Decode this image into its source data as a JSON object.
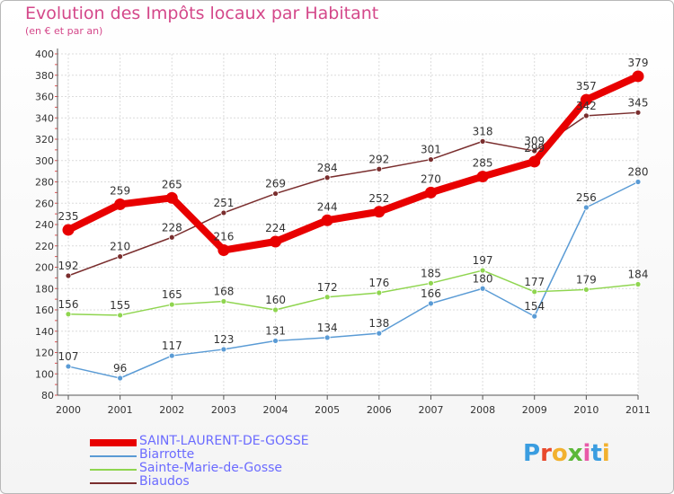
{
  "header": {
    "title": "Evolution des Impôts locaux par Habitant",
    "subtitle": "(en € et par an)"
  },
  "logo": {
    "text": "Proxiti",
    "colors": [
      "#3a9de0",
      "#e8492c",
      "#f2b12f",
      "#5cb83a",
      "#e85aa8",
      "#3a9de0",
      "#f2b12f"
    ]
  },
  "chart_data": {
    "type": "line",
    "categories": [
      "2000",
      "2001",
      "2002",
      "2003",
      "2004",
      "2005",
      "2006",
      "2007",
      "2008",
      "2009",
      "2010",
      "2011"
    ],
    "ylim": [
      80,
      400
    ],
    "yticks": [
      80,
      100,
      120,
      140,
      160,
      180,
      200,
      220,
      240,
      260,
      280,
      300,
      320,
      340,
      360,
      380,
      400
    ],
    "grid": true,
    "legend_position": "bottom-left",
    "series": [
      {
        "name": "SAINT-LAURENT-DE-GOSSE",
        "color": "#e80000",
        "values": [
          235,
          259,
          265,
          216,
          224,
          244,
          252,
          270,
          285,
          299,
          357,
          379
        ],
        "labels": [
          "235",
          "259",
          "265",
          "216",
          "224",
          "244",
          "252",
          "270",
          "285",
          "",
          "357",
          "379"
        ],
        "emphasis": true
      },
      {
        "name": "Biarrotte",
        "color": "#5a9bd5",
        "values": [
          107,
          96,
          117,
          123,
          131,
          134,
          138,
          166,
          180,
          154,
          256,
          280
        ],
        "labels": [
          "107",
          "96",
          "117",
          "123",
          "131",
          "134",
          "138",
          "166",
          "180",
          "154",
          "256",
          "280"
        ],
        "emphasis": false
      },
      {
        "name": "Sainte-Marie-de-Gosse",
        "color": "#8fd54f",
        "values": [
          156,
          155,
          165,
          168,
          160,
          172,
          176,
          185,
          197,
          177,
          179,
          184
        ],
        "labels": [
          "156",
          "155",
          "165",
          "168",
          "160",
          "172",
          "176",
          "185",
          "197",
          "177",
          "179",
          "184"
        ],
        "emphasis": false
      },
      {
        "name": "Biaudos",
        "color": "#7a2e2e",
        "values": [
          192,
          210,
          228,
          251,
          269,
          284,
          292,
          301,
          318,
          309,
          342,
          345
        ],
        "labels": [
          "192",
          "210",
          "228",
          "251",
          "269",
          "284",
          "292",
          "301",
          "318",
          "309",
          "342",
          "345"
        ],
        "emphasis": false
      }
    ],
    "overlapping_labels_2009": [
      "299",
      "309"
    ]
  }
}
